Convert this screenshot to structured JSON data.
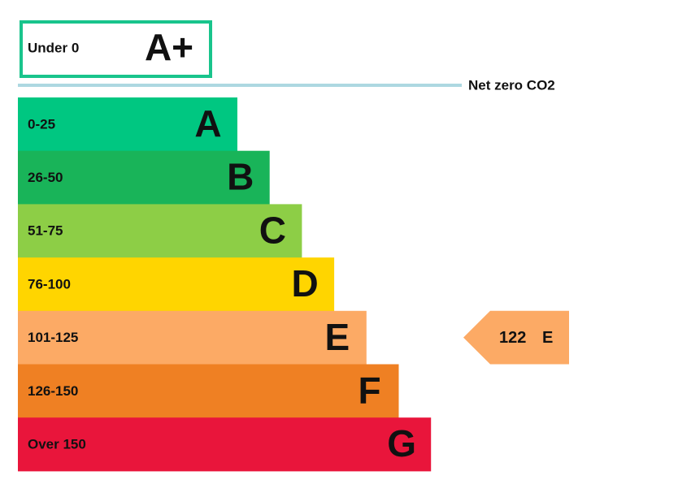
{
  "top": {
    "range": "Under 0",
    "letter": "A+",
    "color": "#19c48c"
  },
  "net_zero": {
    "label": "Net zero CO2",
    "color": "#add8e1"
  },
  "bands": [
    {
      "range": "0-25",
      "letter": "A",
      "color": "#00c781"
    },
    {
      "range": "26-50",
      "letter": "B",
      "color": "#19b459"
    },
    {
      "range": "51-75",
      "letter": "C",
      "color": "#8dce46"
    },
    {
      "range": "76-100",
      "letter": "D",
      "color": "#ffd500"
    },
    {
      "range": "101-125",
      "letter": "E",
      "color": "#fcaa65"
    },
    {
      "range": "126-150",
      "letter": "F",
      "color": "#ef8023"
    },
    {
      "range": "Over 150",
      "letter": "G",
      "color": "#e9153b"
    }
  ],
  "indicator": {
    "value": "122",
    "letter": "E"
  }
}
